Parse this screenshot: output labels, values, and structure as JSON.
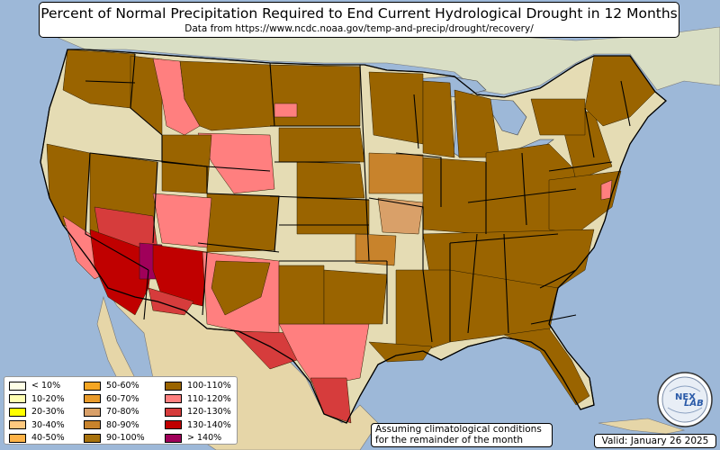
{
  "header": {
    "title": "Percent of Normal Precipitation Required to End Current Hydrological Drought in 12 Months",
    "subtitle": "Data from https://www.ncdc.noaa.gov/temp-and-precip/drought/recovery/"
  },
  "legend": {
    "items": [
      {
        "label": "< 10%",
        "color": "#ffffe6"
      },
      {
        "label": "10-20%",
        "color": "#ffffb3"
      },
      {
        "label": "20-30%",
        "color": "#ffff00"
      },
      {
        "label": "30-40%",
        "color": "#ffc97f"
      },
      {
        "label": "40-50%",
        "color": "#ffb347"
      },
      {
        "label": "50-60%",
        "color": "#f5a623"
      },
      {
        "label": "60-70%",
        "color": "#e89a2a"
      },
      {
        "label": "70-80%",
        "color": "#d9a069"
      },
      {
        "label": "80-90%",
        "color": "#c8832c"
      },
      {
        "label": "90-100%",
        "color": "#a8720c"
      },
      {
        "label": "100-110%",
        "color": "#9a6400"
      },
      {
        "label": "110-120%",
        "color": "#ff7f7f"
      },
      {
        "label": "120-130%",
        "color": "#d63c3c"
      },
      {
        "label": "130-140%",
        "color": "#c00000"
      },
      {
        "label": "> 140%",
        "color": "#a0005a"
      }
    ]
  },
  "note": {
    "line1": "Assuming climatological conditions",
    "line2": "for the remainder of the month"
  },
  "valid": "Valid: January 26 2025",
  "logo": {
    "text": "NEX LAB",
    "part1": "NEX",
    "part2": "LAB"
  },
  "colors": {
    "ocean": "#9db8d8",
    "land": "#e6dcb8",
    "base_land": "#dfd7b0",
    "canada": "#d4dcc0",
    "mexico": "#e3d4a8",
    "lakes": "#9db8d8"
  }
}
